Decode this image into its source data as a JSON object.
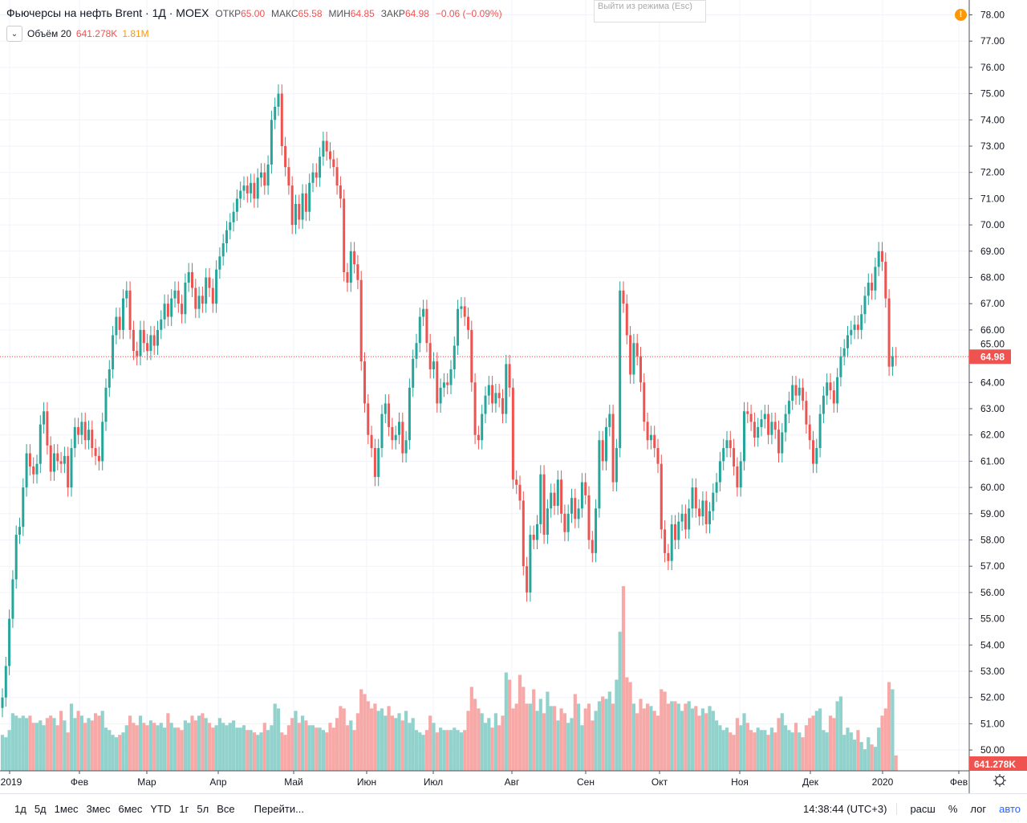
{
  "header": {
    "title": "Фьючерсы на нефть Brent · 1Д · MOEX",
    "open_label": "ОТКР",
    "open": "65.00",
    "high_label": "МАКС",
    "high": "65.58",
    "low_label": "МИН",
    "low": "64.85",
    "close_label": "ЗАКР",
    "close": "64.98",
    "change": "−0.06 (−0.09%)",
    "volume_label": "Объём 20",
    "volume": "641.278K",
    "volume_ma": "1.81M",
    "exit_tip": "Выйти из режима (Esc)",
    "warning_icon": "!"
  },
  "toolbar": {
    "ranges": [
      "1д",
      "5д",
      "1мес",
      "3мес",
      "6мес",
      "YTD",
      "1г",
      "5л",
      "Все"
    ],
    "goto": "Перейти...",
    "time": "14:38:44 (UTC+3)",
    "options": [
      "расш",
      "%",
      "лог",
      "авто"
    ]
  },
  "colors": {
    "up": "#26a69a",
    "down": "#ef5350",
    "vol_up": "#92d2cc",
    "vol_down": "#f7a9a7",
    "last": "#ef5350"
  },
  "chart_data": {
    "type": "candlestick",
    "title": "Фьючерсы на нефть Brent · 1Д · MOEX",
    "ylim": [
      50,
      78
    ],
    "y_ticks": [
      "78.00",
      "77.00",
      "76.00",
      "75.00",
      "74.00",
      "73.00",
      "72.00",
      "71.00",
      "70.00",
      "69.00",
      "68.00",
      "67.00",
      "66.00",
      "65.00",
      "64.00",
      "63.00",
      "62.00",
      "61.00",
      "60.00",
      "59.00",
      "58.00",
      "57.00",
      "56.00",
      "55.00",
      "54.00",
      "53.00",
      "52.00",
      "51.00",
      "50.00"
    ],
    "x_ticks": [
      "2019",
      "Фев",
      "Мар",
      "Апр",
      "Май",
      "Июн",
      "Июл",
      "Авг",
      "Сен",
      "Окт",
      "Ноя",
      "Дек",
      "2020",
      "Фев"
    ],
    "last_price": 64.98,
    "last_price_label": "64.98",
    "last_volume_label": "641.278K",
    "first_open": 51.6,
    "closes": [
      52.0,
      53.2,
      55.0,
      56.5,
      58.2,
      58.5,
      60.0,
      61.3,
      60.8,
      60.5,
      60.9,
      62.4,
      62.9,
      61.6,
      60.6,
      61.3,
      61.0,
      60.9,
      61.2,
      60.0,
      61.5,
      62.3,
      62.0,
      62.5,
      61.8,
      62.2,
      61.5,
      61.2,
      61.0,
      62.5,
      63.8,
      64.5,
      65.8,
      66.5,
      66.0,
      67.2,
      67.5,
      66.0,
      65.2,
      65.0,
      66.0,
      65.5,
      65.2,
      65.8,
      65.4,
      66.0,
      66.4,
      67.0,
      66.5,
      67.2,
      67.5,
      67.0,
      66.6,
      67.8,
      68.2,
      67.6,
      66.8,
      67.3,
      67.0,
      68.0,
      67.6,
      67.0,
      68.3,
      68.8,
      69.3,
      69.8,
      70.1,
      70.5,
      71.0,
      71.3,
      71.5,
      71.2,
      71.6,
      71.0,
      71.8,
      72.0,
      71.5,
      72.3,
      74.0,
      74.5,
      75.0,
      73.0,
      72.2,
      71.5,
      70.0,
      70.8,
      70.2,
      71.2,
      70.5,
      71.6,
      72.0,
      71.8,
      72.6,
      73.2,
      72.8,
      72.5,
      72.2,
      71.5,
      71.0,
      68.2,
      67.8,
      69.0,
      68.5,
      67.9,
      64.8,
      63.2,
      62.0,
      61.5,
      60.4,
      61.5,
      62.8,
      63.2,
      62.3,
      61.8,
      62.0,
      62.5,
      61.3,
      61.8,
      63.8,
      64.9,
      65.5,
      66.5,
      66.8,
      65.5,
      64.5,
      64.8,
      63.2,
      63.8,
      64.0,
      63.9,
      64.5,
      65.4,
      66.8,
      66.9,
      66.5,
      66.0,
      64.0,
      62.0,
      61.8,
      62.8,
      63.5,
      63.9,
      63.2,
      63.6,
      63.4,
      62.8,
      64.7,
      63.8,
      60.3,
      60.1,
      59.5,
      57.0,
      56.0,
      58.2,
      58.0,
      58.6,
      60.5,
      58.2,
      59.2,
      59.8,
      59.3,
      60.3,
      59.0,
      58.3,
      59.0,
      59.6,
      58.8,
      59.2,
      60.2,
      59.7,
      58.0,
      57.5,
      59.2,
      61.8,
      61.0,
      62.3,
      62.8,
      60.2,
      61.5,
      67.5,
      67.0,
      65.8,
      64.3,
      65.5,
      65.0,
      64.0,
      62.5,
      61.8,
      62.0,
      61.5,
      60.9,
      58.4,
      57.5,
      57.2,
      58.6,
      58.0,
      58.7,
      59.0,
      58.4,
      59.2,
      60.0,
      59.2,
      58.9,
      59.5,
      58.6,
      59.1,
      59.8,
      60.2,
      61.0,
      61.5,
      61.8,
      61.5,
      60.8,
      60.0,
      61.0,
      62.9,
      62.8,
      62.5,
      61.9,
      62.3,
      62.6,
      62.8,
      62.0,
      62.5,
      62.2,
      61.3,
      62.1,
      62.8,
      63.3,
      63.9,
      63.5,
      63.8,
      63.3,
      62.4,
      61.8,
      60.9,
      61.5,
      62.8,
      63.5,
      64.0,
      63.7,
      63.2,
      64.2,
      65.0,
      65.3,
      65.8,
      66.0,
      66.2,
      66.0,
      66.6,
      67.3,
      67.8,
      67.5,
      68.4,
      69.0,
      68.6,
      67.2,
      64.6,
      65.0,
      64.98
    ],
    "volumes_k": [
      1500,
      1400,
      1700,
      2400,
      2300,
      2200,
      2300,
      2200,
      2300,
      2000,
      2000,
      2100,
      1900,
      2200,
      2300,
      2200,
      1900,
      2500,
      2100,
      1600,
      2800,
      2200,
      2500,
      2300,
      2000,
      2200,
      2100,
      2400,
      2300,
      2500,
      1800,
      1700,
      1500,
      1400,
      1500,
      1600,
      1900,
      2300,
      2000,
      1900,
      2300,
      2000,
      1900,
      2100,
      2000,
      1900,
      2000,
      1800,
      2400,
      2000,
      1800,
      1800,
      1700,
      2100,
      2000,
      2300,
      2100,
      2300,
      2400,
      2200,
      2000,
      1800,
      1900,
      2200,
      2000,
      1900,
      2000,
      2100,
      1800,
      1800,
      1900,
      1700,
      1700,
      1600,
      1500,
      1600,
      2000,
      1700,
      1900,
      2800,
      2600,
      1600,
      1500,
      1900,
      2200,
      2500,
      2000,
      2300,
      2100,
      1900,
      1900,
      1800,
      1800,
      1700,
      1600,
      2000,
      1800,
      2200,
      2700,
      2600,
      1900,
      2100,
      1700,
      2400,
      3400,
      3200,
      2900,
      2600,
      2800,
      2500,
      2600,
      2300,
      2700,
      2300,
      2200,
      2400,
      2100,
      2500,
      2000,
      2200,
      1700,
      1600,
      1500,
      1700,
      2300,
      2000,
      1600,
      1800,
      1700,
      1700,
      1700,
      1800,
      1700,
      1600,
      1700,
      2500,
      3500,
      3000,
      2600,
      2400,
      2000,
      2200,
      1800,
      2400,
      1900,
      2300,
      4100,
      3800,
      2600,
      2800,
      4000,
      3500,
      2800,
      2800,
      3400,
      2500,
      3000,
      2400,
      3300,
      2700,
      2700,
      2100,
      2600,
      2400,
      2000,
      2200,
      3200,
      2800,
      1900,
      2600,
      2800,
      2100,
      2500,
      2900,
      3100,
      3000,
      3300,
      2800,
      3800,
      5800,
      7700,
      3900,
      3700,
      2800,
      2400,
      3000,
      2600,
      2800,
      2700,
      2500,
      2300,
      3400,
      3300,
      2800,
      2900,
      2900,
      2800,
      2500,
      2800,
      2900,
      2600,
      2700,
      2300,
      2600,
      2400,
      2700,
      2500,
      2100,
      1900,
      1700,
      1800,
      1600,
      1500,
      2200,
      1900,
      2400,
      2000,
      1700,
      1600,
      1800,
      1700,
      1700,
      1500,
      1800,
      1600,
      2200,
      2400,
      1900,
      1700,
      1600,
      2000,
      1600,
      1400,
      1900,
      2200,
      2300,
      2500,
      2600,
      1700,
      1600,
      2300,
      2200,
      2900,
      3100,
      1500,
      1800,
      1600,
      1300,
      1700,
      1200,
      900,
      1400,
      1100,
      1000,
      1800,
      2300,
      2600,
      3700,
      3400,
      641
    ]
  }
}
